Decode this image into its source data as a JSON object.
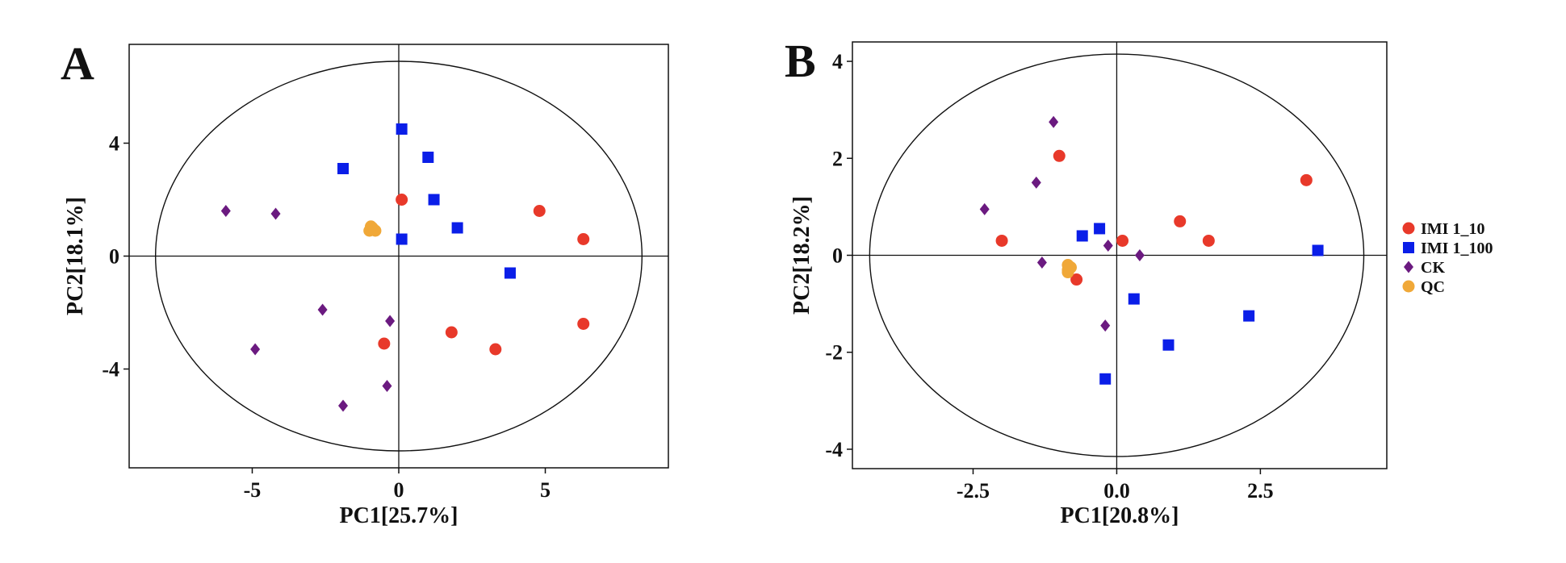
{
  "chart_data": [
    {
      "type": "scatter",
      "panel_label": "A",
      "xlabel": "PC1[25.7%]",
      "ylabel": "PC2[18.1%]",
      "xlim": [
        -9.2,
        9.2
      ],
      "ylim": [
        -7.5,
        7.5
      ],
      "xticks": [
        -5,
        0,
        5
      ],
      "xtick_labels": [
        "-5",
        "0",
        "5"
      ],
      "yticks": [
        -4,
        0,
        4
      ],
      "ytick_labels": [
        "-4",
        "0",
        "4"
      ],
      "ellipse": {
        "cx": 0,
        "cy": 0,
        "rx": 8.3,
        "ry": 6.9
      },
      "crosshair": true,
      "grid": false,
      "series": [
        {
          "name": "IMI 1_10",
          "marker": "circle",
          "color": "#e8392a",
          "points": [
            [
              0.1,
              2.0
            ],
            [
              4.8,
              1.6
            ],
            [
              6.3,
              0.6
            ],
            [
              6.3,
              -2.4
            ],
            [
              1.8,
              -2.7
            ],
            [
              3.3,
              -3.3
            ],
            [
              -0.5,
              -3.1
            ]
          ]
        },
        {
          "name": "IMI 1_100",
          "marker": "square",
          "color": "#0a1ee8",
          "points": [
            [
              0.1,
              4.5
            ],
            [
              -1.9,
              3.1
            ],
            [
              1.0,
              3.5
            ],
            [
              1.2,
              2.0
            ],
            [
              2.0,
              1.0
            ],
            [
              0.1,
              0.6
            ],
            [
              3.8,
              -0.6
            ]
          ]
        },
        {
          "name": "CK",
          "marker": "diamond",
          "color": "#6b1a80",
          "points": [
            [
              -5.9,
              1.6
            ],
            [
              -4.2,
              1.5
            ],
            [
              -2.6,
              -1.9
            ],
            [
              -0.3,
              -2.3
            ],
            [
              -4.9,
              -3.3
            ],
            [
              -1.9,
              -5.3
            ],
            [
              -0.4,
              -4.6
            ]
          ]
        },
        {
          "name": "QC",
          "marker": "circle",
          "color": "#f0a838",
          "points": [
            [
              -0.9,
              1.0
            ],
            [
              -1.0,
              0.9
            ],
            [
              -0.8,
              0.9
            ],
            [
              -0.95,
              1.05
            ]
          ]
        }
      ]
    },
    {
      "type": "scatter",
      "panel_label": "B",
      "xlabel": "PC1[20.8%]",
      "ylabel": "PC2[18.2%]",
      "xlim": [
        -4.6,
        4.7
      ],
      "ylim": [
        -4.4,
        4.4
      ],
      "xticks": [
        -2.5,
        0,
        2.5
      ],
      "xtick_labels": [
        "-2.5",
        "0.0",
        "2.5"
      ],
      "yticks": [
        -4,
        -2,
        0,
        2,
        4
      ],
      "ytick_labels": [
        "-4",
        "-2",
        "0",
        "2",
        "4"
      ],
      "ellipse": {
        "cx": 0,
        "cy": 0,
        "rx": 4.3,
        "ry": 4.15
      },
      "crosshair": true,
      "grid": false,
      "legend_position": "right",
      "series": [
        {
          "name": "IMI 1_10",
          "marker": "circle",
          "color": "#e8392a",
          "points": [
            [
              -1.0,
              2.05
            ],
            [
              3.3,
              1.55
            ],
            [
              1.1,
              0.7
            ],
            [
              1.6,
              0.3
            ],
            [
              0.1,
              0.3
            ],
            [
              -2.0,
              0.3
            ],
            [
              -0.7,
              -0.5
            ]
          ]
        },
        {
          "name": "IMI 1_100",
          "marker": "square",
          "color": "#0a1ee8",
          "points": [
            [
              -0.6,
              0.4
            ],
            [
              -0.3,
              0.55
            ],
            [
              3.5,
              0.1
            ],
            [
              0.3,
              -0.9
            ],
            [
              2.3,
              -1.25
            ],
            [
              0.9,
              -1.85
            ],
            [
              -0.2,
              -2.55
            ]
          ]
        },
        {
          "name": "CK",
          "marker": "diamond",
          "color": "#6b1a80",
          "points": [
            [
              -1.1,
              2.75
            ],
            [
              -1.4,
              1.5
            ],
            [
              -2.3,
              0.95
            ],
            [
              -0.15,
              0.2
            ],
            [
              0.4,
              0.0
            ],
            [
              -1.3,
              -0.15
            ],
            [
              -0.2,
              -1.45
            ]
          ]
        },
        {
          "name": "QC",
          "marker": "circle",
          "color": "#f0a838",
          "points": [
            [
              -0.85,
              -0.2
            ],
            [
              -0.85,
              -0.3
            ],
            [
              -0.8,
              -0.25
            ],
            [
              -0.85,
              -0.35
            ]
          ]
        }
      ]
    }
  ]
}
